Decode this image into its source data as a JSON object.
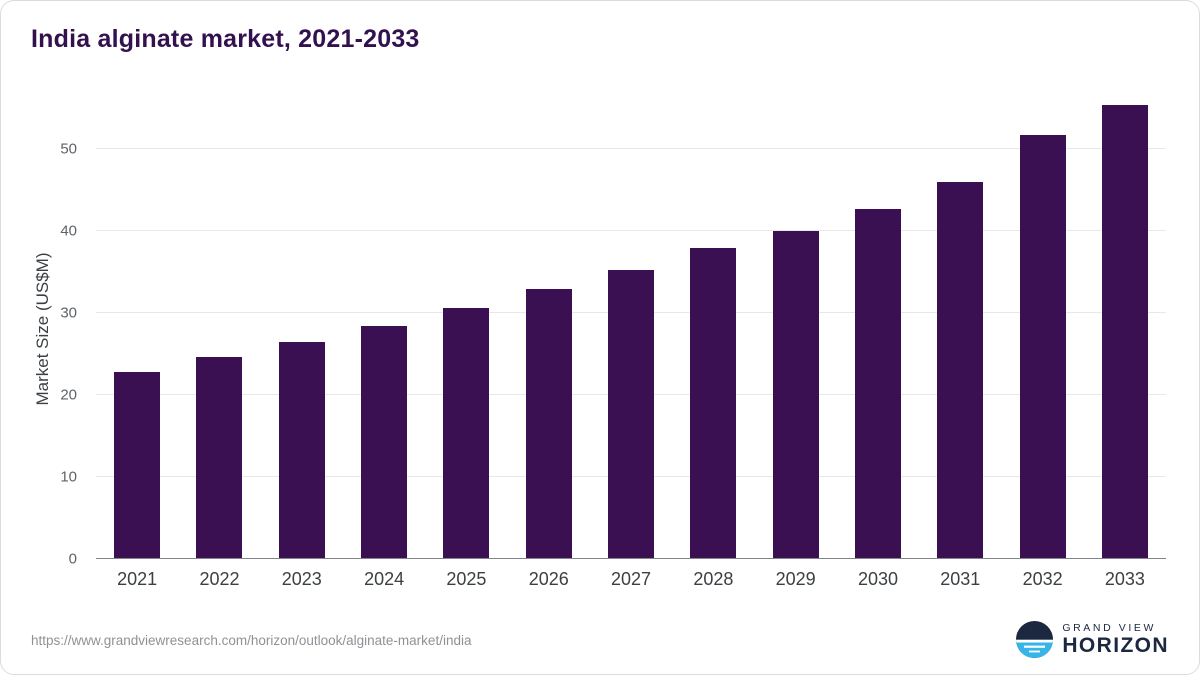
{
  "header": {
    "title": "India alginate market, 2021-2033"
  },
  "chart_data": {
    "type": "bar",
    "title": "India alginate market, 2021-2033",
    "categories": [
      "2021",
      "2022",
      "2023",
      "2024",
      "2025",
      "2026",
      "2027",
      "2028",
      "2029",
      "2030",
      "2031",
      "2032",
      "2033"
    ],
    "values": [
      22.8,
      24.6,
      26.5,
      28.4,
      30.6,
      32.9,
      35.3,
      38.0,
      40.0,
      42.7,
      46.0,
      51.7,
      55.4
    ],
    "xlabel": "",
    "ylabel": "Market Size (US$M)",
    "yticks": [
      0,
      10,
      20,
      30,
      40,
      50
    ],
    "ylim": [
      0,
      56.5
    ],
    "grid": true,
    "legend": "none",
    "bar_color": "#3b1053",
    "title_color": "#33114e"
  },
  "footer": {
    "source_url": "https://www.grandviewresearch.com/horizon/outlook/alginate-market/india",
    "logo": {
      "line1": "GRAND VIEW",
      "line2": "HORIZON",
      "icon": "horizon-circle-icon",
      "icon_colors": {
        "top": "#1b2840",
        "bottom": "#36b5e6",
        "stripes": "#ffffff"
      }
    }
  }
}
